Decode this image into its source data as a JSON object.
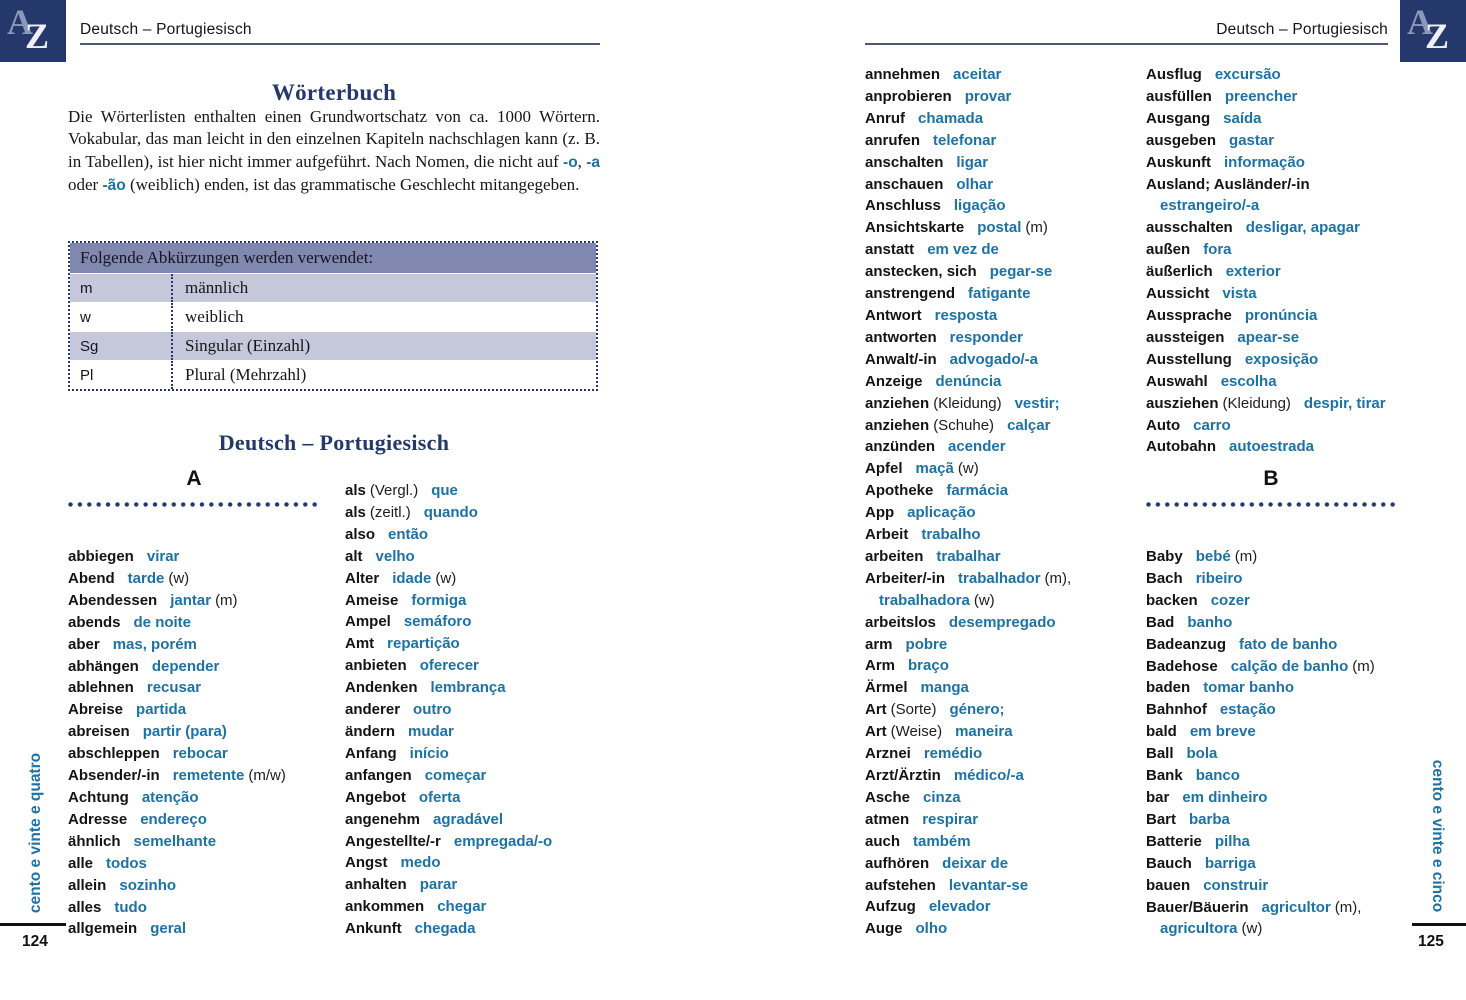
{
  "colors": {
    "navy": "#24386b",
    "teal": "#1c72a5",
    "table_header_bg": "#8188b0",
    "table_row_bg": "#c5c8db",
    "rule": "#4d5878"
  },
  "logo": {
    "letter_a": "A",
    "letter_z": "Z"
  },
  "running_header": {
    "left": "Deutsch – Portugiesisch",
    "right": "Deutsch – Portugiesisch"
  },
  "left_page": {
    "title": "Wörterbuch",
    "intro_segments": [
      {
        "text": "Die Wörterlisten enthalten einen Grundwortschatz von ca. 1000 Wörtern. Vokabular, das man leicht in den einzelnen Kapiteln nachschlagen kann (z. B. in Tabellen), ist hier nicht immer aufgeführt. Nach Nomen, die nicht auf ",
        "accent": false
      },
      {
        "text": "-o",
        "accent": true
      },
      {
        "text": ", ",
        "accent": false
      },
      {
        "text": "-a",
        "accent": true
      },
      {
        "text": " oder ",
        "accent": false
      },
      {
        "text": "-ão",
        "accent": true
      },
      {
        "text": " (weiblich) enden, ist das grammatische Geschlecht mitangegeben.",
        "accent": false
      }
    ],
    "abbrev_table": {
      "header": "Folgende Abkürzungen werden verwendet:",
      "rows": [
        {
          "abbr": "m",
          "meaning": "männlich"
        },
        {
          "abbr": "w",
          "meaning": "weiblich"
        },
        {
          "abbr": "Sg",
          "meaning": "Singular (Einzahl)"
        },
        {
          "abbr": "Pl",
          "meaning": "Plural (Mehrzahl)"
        }
      ]
    },
    "section_title": "Deutsch – Portugiesisch",
    "letter": "A",
    "column1": [
      {
        "de": "abbiegen",
        "pt": "virar"
      },
      {
        "de": "Abend",
        "pt": "tarde",
        "sfx": "(w)"
      },
      {
        "de": "Abendessen",
        "pt": "jantar",
        "sfx": "(m)"
      },
      {
        "de": "abends",
        "pt": "de noite"
      },
      {
        "de": "aber",
        "pt": "mas, porém"
      },
      {
        "de": "abhängen",
        "pt": "depender"
      },
      {
        "de": "ablehnen",
        "pt": "recusar"
      },
      {
        "de": "Abreise",
        "pt": "partida"
      },
      {
        "de": "abreisen",
        "pt": "partir (para)"
      },
      {
        "de": "abschleppen",
        "pt": "rebocar"
      },
      {
        "de": "Absender/-in",
        "pt": "remetente",
        "sfx": "(m/w)"
      },
      {
        "de": "Achtung",
        "pt": "atenção"
      },
      {
        "de": "Adresse",
        "pt": "endereço"
      },
      {
        "de": "ähnlich",
        "pt": "semelhante"
      },
      {
        "de": "alle",
        "pt": "todos"
      },
      {
        "de": "allein",
        "pt": "sozinho"
      },
      {
        "de": "alles",
        "pt": "tudo"
      },
      {
        "de": "allgemein",
        "pt": "geral"
      }
    ],
    "column2": [
      {
        "de": "als",
        "note": "(Vergl.)",
        "pt": "que"
      },
      {
        "de": "als",
        "note": "(zeitl.)",
        "pt": "quando"
      },
      {
        "de": "also",
        "pt": "então"
      },
      {
        "de": "alt",
        "pt": "velho"
      },
      {
        "de": "Alter",
        "pt": "idade",
        "sfx": "(w)"
      },
      {
        "de": "Ameise",
        "pt": "formiga"
      },
      {
        "de": "Ampel",
        "pt": "semáforo"
      },
      {
        "de": "Amt",
        "pt": "repartição"
      },
      {
        "de": "anbieten",
        "pt": "oferecer"
      },
      {
        "de": "Andenken",
        "pt": "lembrança"
      },
      {
        "de": "anderer",
        "pt": "outro"
      },
      {
        "de": "ändern",
        "pt": "mudar"
      },
      {
        "de": "Anfang",
        "pt": "início"
      },
      {
        "de": "anfangen",
        "pt": "começar"
      },
      {
        "de": "Angebot",
        "pt": "oferta"
      },
      {
        "de": "angenehm",
        "pt": "agradável"
      },
      {
        "de": "Angestellte/-r",
        "pt": "empregada/-o"
      },
      {
        "de": "Angst",
        "pt": "medo"
      },
      {
        "de": "anhalten",
        "pt": "parar"
      },
      {
        "de": "ankommen",
        "pt": "chegar"
      },
      {
        "de": "Ankunft",
        "pt": "chegada"
      }
    ],
    "page_number": "124",
    "side_text": "cento e vinte e quatro"
  },
  "right_page": {
    "column1": [
      {
        "de": "annehmen",
        "pt": "aceitar"
      },
      {
        "de": "anprobieren",
        "pt": "provar"
      },
      {
        "de": "Anruf",
        "pt": "chamada"
      },
      {
        "de": "anrufen",
        "pt": "telefonar"
      },
      {
        "de": "anschalten",
        "pt": "ligar"
      },
      {
        "de": "anschauen",
        "pt": "olhar"
      },
      {
        "de": "Anschluss",
        "pt": "ligação"
      },
      {
        "de": "Ansichtskarte",
        "pt": "postal",
        "sfx": "(m)"
      },
      {
        "de": "anstatt",
        "pt": "em vez de"
      },
      {
        "de": "anstecken, sich",
        "pt": "pegar-se"
      },
      {
        "de": "anstrengend",
        "pt": "fatigante"
      },
      {
        "de": "Antwort",
        "pt": "resposta"
      },
      {
        "de": "antworten",
        "pt": "responder"
      },
      {
        "de": "Anwalt/-in",
        "pt": "advogado/-a"
      },
      {
        "de": "Anzeige",
        "pt": "denúncia"
      },
      {
        "de": "anziehen",
        "note": "(Kleidung)",
        "pt": "vestir;"
      },
      {
        "de": "anziehen",
        "note": "(Schuhe)",
        "pt": "calçar"
      },
      {
        "de": "anzünden",
        "pt": "acender"
      },
      {
        "de": "Apfel",
        "pt": "maçã",
        "sfx": "(w)"
      },
      {
        "de": "Apotheke",
        "pt": "farmácia"
      },
      {
        "de": "App",
        "pt": "aplicação"
      },
      {
        "de": "Arbeit",
        "pt": "trabalho"
      },
      {
        "de": "arbeiten",
        "pt": "trabalhar"
      },
      {
        "de": "Arbeiter/-in",
        "pt": "trabalhador",
        "sfx": "(m),"
      },
      {
        "pt": "trabalhadora",
        "sfx": "(w)",
        "wrap": true
      },
      {
        "de": "arbeitslos",
        "pt": "desempregado"
      },
      {
        "de": "arm",
        "pt": "pobre"
      },
      {
        "de": "Arm",
        "pt": "braço"
      },
      {
        "de": "Ärmel",
        "pt": "manga"
      },
      {
        "de": "Art",
        "note": "(Sorte)",
        "pt": "género;"
      },
      {
        "de": "Art",
        "note": "(Weise)",
        "pt": "maneira"
      },
      {
        "de": "Arznei",
        "pt": "remédio"
      },
      {
        "de": "Arzt/Ärztin",
        "pt": "médico/-a"
      },
      {
        "de": "Asche",
        "pt": "cinza"
      },
      {
        "de": "atmen",
        "pt": "respirar"
      },
      {
        "de": "auch",
        "pt": "também"
      },
      {
        "de": "aufhören",
        "pt": "deixar de"
      },
      {
        "de": "aufstehen",
        "pt": "levantar-se"
      },
      {
        "de": "Aufzug",
        "pt": "elevador"
      },
      {
        "de": "Auge",
        "pt": "olho"
      }
    ],
    "column2_a": [
      {
        "de": "Ausflug",
        "pt": "excursão"
      },
      {
        "de": "ausfüllen",
        "pt": "preencher"
      },
      {
        "de": "Ausgang",
        "pt": "saída"
      },
      {
        "de": "ausgeben",
        "pt": "gastar"
      },
      {
        "de": "Auskunft",
        "pt": "informação"
      },
      {
        "de": "Ausland; Ausländer/-in"
      },
      {
        "pt": "estrangeiro/-a",
        "wrap": true
      },
      {
        "de": "ausschalten",
        "pt": "desligar, apagar"
      },
      {
        "de": "außen",
        "pt": "fora"
      },
      {
        "de": "äußerlich",
        "pt": "exterior"
      },
      {
        "de": "Aussicht",
        "pt": "vista"
      },
      {
        "de": "Aussprache",
        "pt": "pronúncia"
      },
      {
        "de": "aussteigen",
        "pt": "apear-se"
      },
      {
        "de": "Ausstellung",
        "pt": "exposição"
      },
      {
        "de": "Auswahl",
        "pt": "escolha"
      },
      {
        "de": "ausziehen",
        "note": "(Kleidung)",
        "pt": "despir, tirar"
      },
      {
        "de": "Auto",
        "pt": "carro"
      },
      {
        "de": "Autobahn",
        "pt": "autoestrada"
      }
    ],
    "letter": "B",
    "column2_b": [
      {
        "de": "Baby",
        "pt": "bebé",
        "sfx": "(m)"
      },
      {
        "de": "Bach",
        "pt": "ribeiro"
      },
      {
        "de": "backen",
        "pt": "cozer"
      },
      {
        "de": "Bad",
        "pt": "banho"
      },
      {
        "de": "Badeanzug",
        "pt": "fato de banho"
      },
      {
        "de": "Badehose",
        "pt": "calção de banho",
        "sfx": "(m)"
      },
      {
        "de": "baden",
        "pt": "tomar banho"
      },
      {
        "de": "Bahnhof",
        "pt": "estação"
      },
      {
        "de": "bald",
        "pt": "em breve"
      },
      {
        "de": "Ball",
        "pt": "bola"
      },
      {
        "de": "Bank",
        "pt": "banco"
      },
      {
        "de": "bar",
        "pt": "em dinheiro"
      },
      {
        "de": "Bart",
        "pt": "barba"
      },
      {
        "de": "Batterie",
        "pt": "pilha"
      },
      {
        "de": "Bauch",
        "pt": "barriga"
      },
      {
        "de": "bauen",
        "pt": "construir"
      },
      {
        "de": "Bauer/Bäuerin",
        "pt": "agricultor",
        "sfx": "(m),"
      },
      {
        "pt": "agricultora",
        "sfx": "(w)",
        "wrap": true
      }
    ],
    "page_number": "125",
    "side_text": "cento e vinte e cinco"
  }
}
